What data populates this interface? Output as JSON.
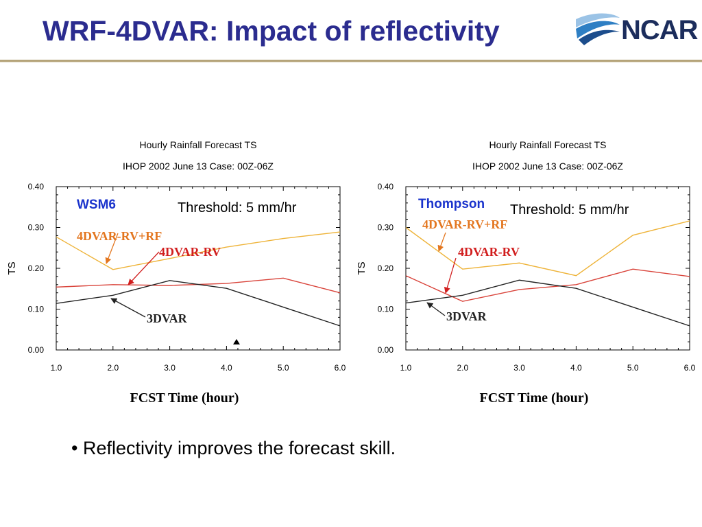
{
  "slide": {
    "title": "WRF-4DVAR: Impact of reflectivity",
    "logo_text": "NCAR",
    "bullet": "• Reflectivity improves the forecast skill."
  },
  "colors": {
    "title": "#2b2c8f",
    "rule": "#b5a47a",
    "rf_line": "#eeb338",
    "rv_line": "#d9433a",
    "dvar3_line": "#222222",
    "scheme_label": "#1a33cc",
    "rf_label": "#e3761f",
    "rv_label": "#d11e1e",
    "logo_text": "#1c2d5c"
  },
  "chart_data": [
    {
      "type": "line",
      "title": "Hourly Rainfall Forecast TS",
      "subtitle": "IHOP 2002 June 13 Case: 00Z-06Z",
      "xlabel": "FCST Time (hour)",
      "ylabel": "TS",
      "xlim": [
        1.0,
        6.0
      ],
      "ylim": [
        0.0,
        0.4
      ],
      "xticks": [
        "1.0",
        "2.0",
        "3.0",
        "4.0",
        "5.0",
        "6.0"
      ],
      "yticks": [
        "0.00",
        "0.10",
        "0.20",
        "0.30",
        "0.40"
      ],
      "x": [
        1,
        2,
        3,
        4,
        5,
        6
      ],
      "scheme": "WSM6",
      "threshold": "Threshold: 5 mm/hr",
      "series": [
        {
          "name": "4DVAR-RV+RF",
          "values": [
            0.277,
            0.197,
            0.224,
            0.252,
            0.273,
            0.289
          ]
        },
        {
          "name": "4DVAR-RV",
          "values": [
            0.154,
            0.16,
            0.158,
            0.163,
            0.176,
            0.14
          ]
        },
        {
          "name": "3DVAR",
          "values": [
            0.114,
            0.134,
            0.17,
            0.151,
            0.105,
            0.059
          ]
        }
      ]
    },
    {
      "type": "line",
      "title": "Hourly Rainfall Forecast TS",
      "subtitle": "IHOP 2002 June 13 Case: 00Z-06Z",
      "xlabel": "FCST Time (hour)",
      "ylabel": "TS",
      "xlim": [
        1.0,
        6.0
      ],
      "ylim": [
        0.0,
        0.4
      ],
      "xticks": [
        "1.0",
        "2.0",
        "3.0",
        "4.0",
        "5.0",
        "6.0"
      ],
      "yticks": [
        "0.00",
        "0.10",
        "0.20",
        "0.30",
        "0.40"
      ],
      "x": [
        1,
        2,
        3,
        4,
        5,
        6
      ],
      "scheme": "Thompson",
      "threshold": "Threshold: 5 mm/hr",
      "series": [
        {
          "name": "4DVAR-RV+RF",
          "values": [
            0.3,
            0.198,
            0.213,
            0.182,
            0.281,
            0.316
          ]
        },
        {
          "name": "4DVAR-RV",
          "values": [
            0.182,
            0.119,
            0.148,
            0.16,
            0.198,
            0.18
          ]
        },
        {
          "name": "3DVAR",
          "values": [
            0.115,
            0.134,
            0.171,
            0.151,
            0.105,
            0.059
          ]
        }
      ]
    }
  ]
}
